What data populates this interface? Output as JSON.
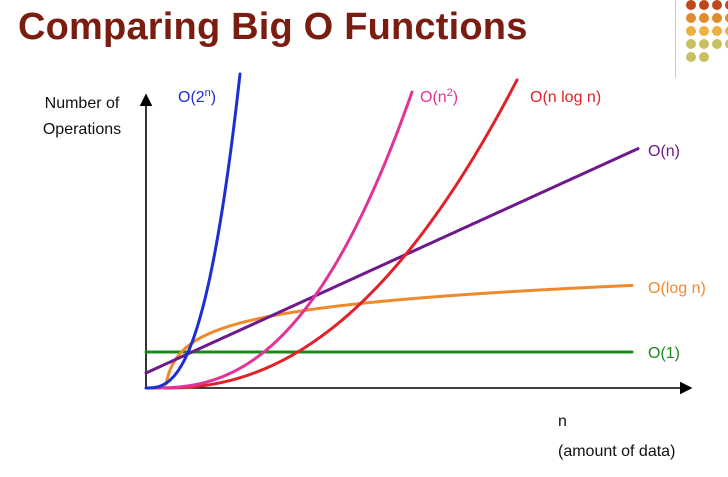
{
  "slide": {
    "title": "Comparing Big O Functions"
  },
  "chart_data": {
    "type": "line",
    "title": "",
    "ylabel": [
      "Number of",
      "Operations"
    ],
    "xlabel": [
      "n",
      "(amount of data)"
    ],
    "grid": false,
    "series": [
      {
        "name": "O(1)",
        "color": "#1a8a1a",
        "formula": "constant"
      },
      {
        "name": "O(log n)",
        "color": "#ef8a2c",
        "formula": "logarithmic"
      },
      {
        "name": "O(n)",
        "color": "#6d1a8e",
        "formula": "linear"
      },
      {
        "name": "O(n log n)",
        "color": "#e0232a",
        "formula": "linearithmic"
      },
      {
        "name": "O(n2)",
        "color": "#e23397",
        "formula": "quadratic"
      },
      {
        "name": "O(2n)",
        "color": "#1c2fd1",
        "formula": "exponential"
      }
    ]
  },
  "decor": {
    "dot_colors": [
      "#c0471a",
      "#e08a2a",
      "#f0b040",
      "#c9c060"
    ]
  }
}
